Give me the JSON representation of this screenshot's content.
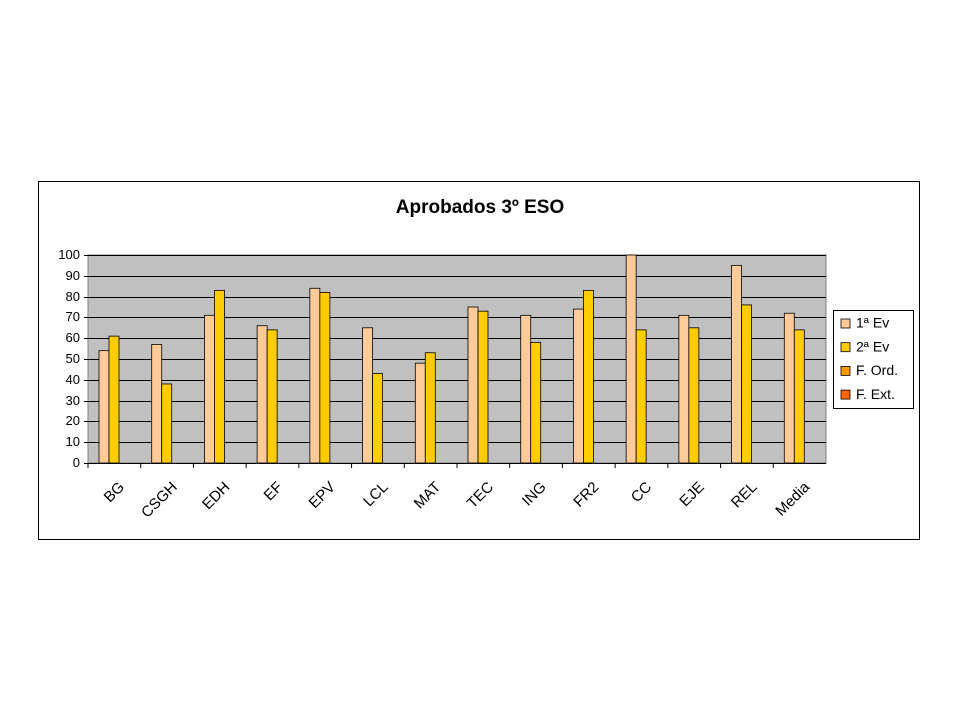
{
  "chart_data": {
    "type": "bar",
    "title": "Aprobados 3º ESO",
    "categories": [
      "BG",
      "CSGH",
      "EDH",
      "EF",
      "EPV",
      "LCL",
      "MAT",
      "TEC",
      "ING",
      "FR2",
      "CC",
      "EJE",
      "REL",
      "Media"
    ],
    "series": [
      {
        "name": "1ª Ev",
        "color": "#ffcc99",
        "values": [
          54,
          57,
          71,
          66,
          84,
          65,
          48,
          75,
          71,
          74,
          100,
          71,
          95,
          72
        ]
      },
      {
        "name": "2ª Ev",
        "color": "#ffcc00",
        "values": [
          61,
          38,
          83,
          64,
          82,
          43,
          53,
          73,
          58,
          83,
          64,
          65,
          76,
          64
        ]
      },
      {
        "name": "F. Ord.",
        "color": "#ff9900",
        "values": [
          null,
          null,
          null,
          null,
          null,
          null,
          null,
          null,
          null,
          null,
          null,
          null,
          null,
          null
        ]
      },
      {
        "name": "F. Ext.",
        "color": "#ff6600",
        "values": [
          null,
          null,
          null,
          null,
          null,
          null,
          null,
          null,
          null,
          null,
          null,
          null,
          null,
          null
        ]
      }
    ],
    "ylim": [
      0,
      100
    ],
    "yticks": [
      0,
      10,
      20,
      30,
      40,
      50,
      60,
      70,
      80,
      90,
      100
    ],
    "grid": true,
    "legend": "right"
  }
}
